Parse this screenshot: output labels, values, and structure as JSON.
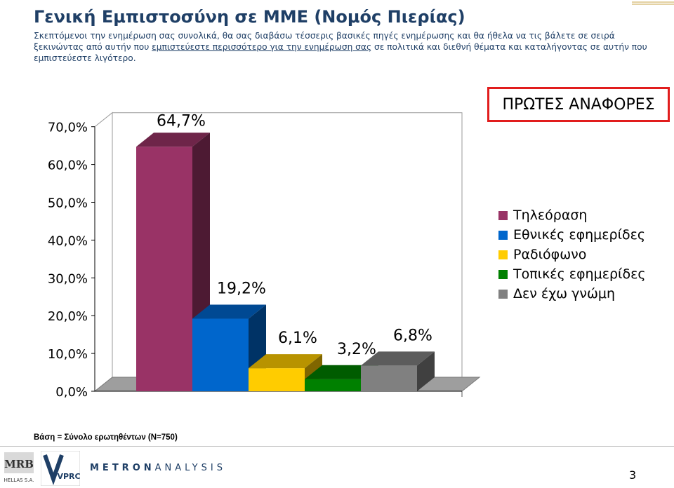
{
  "header": {
    "title": "Γενική Εμπιστοσύνη σε ΜΜΕ (Νομός Πιερίας)",
    "subtitle_part1": "Σκεπτόμενοι την ενημέρωση σας συνολικά, θα σας διαβάσω τέσσερις βασικές πηγές ενημέρωσης και θα ήθελα να τις βάλετε σε σειρά ξεκινώντας από αυτήν που ",
    "subtitle_underlined": "εμπιστεύεστε περισσότερο για την ενημέρωση σας",
    "subtitle_part2": " σε πολιτικά και διεθνή θέματα και καταλήγοντας σε αυτήν που εμπιστεύεστε λιγότερο."
  },
  "badge": {
    "label": "ΠΡΩΤΕΣ ΑΝΑΦΟΡΕΣ",
    "color": "#e11d1d"
  },
  "chart_data": {
    "type": "bar",
    "categories": [
      "Τηλεόραση",
      "Εθνικές εφημερίδες",
      "Ραδιόφωνο",
      "Τοπικές εφημερίδες",
      "Δεν έχω γνώμη"
    ],
    "values": [
      64.7,
      19.2,
      6.1,
      3.2,
      6.8
    ],
    "value_labels": [
      "64,7%",
      "19,2%",
      "6,1%",
      "3,2%",
      "6,8%"
    ],
    "colors": [
      "#993366",
      "#0066cc",
      "#ffcc00",
      "#008000",
      "#808080"
    ],
    "ylim": [
      0,
      70
    ],
    "yticks": [
      "0,0%",
      "10,0%",
      "20,0%",
      "30,0%",
      "40,0%",
      "50,0%",
      "60,0%",
      "70,0%"
    ],
    "legend": "right",
    "grid": false,
    "three_d": true
  },
  "footer": {
    "base_note": "Βάση = Σύνολο ερωτηθέντων (N=750)",
    "mrb_logo": "MRB",
    "mrb_sub": "HELLAS S.A.",
    "vprc_logo": "VPRC",
    "metron_bold": "METRON",
    "metron_light": "ANALYSIS",
    "page_number": "3"
  }
}
